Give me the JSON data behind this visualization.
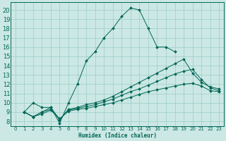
{
  "xlabel": "Humidex (Indice chaleur)",
  "bg_color": "#cce8e4",
  "grid_color": "#99ccc6",
  "line_color": "#006655",
  "xlim": [
    -0.5,
    23.5
  ],
  "ylim": [
    7.5,
    20.8
  ],
  "xticks": [
    0,
    1,
    2,
    3,
    4,
    5,
    6,
    7,
    8,
    9,
    10,
    11,
    12,
    13,
    14,
    15,
    16,
    17,
    18,
    19,
    20,
    21,
    22,
    23
  ],
  "yticks": [
    8,
    9,
    10,
    11,
    12,
    13,
    14,
    15,
    16,
    17,
    18,
    19,
    20
  ],
  "lines": [
    {
      "x": [
        1,
        2,
        3,
        4,
        5,
        6,
        7,
        8,
        9,
        10,
        11,
        12,
        13,
        14,
        15,
        16,
        17,
        18
      ],
      "y": [
        9,
        10,
        9.5,
        9.5,
        7.8,
        10,
        12,
        14.5,
        15.5,
        17,
        18,
        19.3,
        20.2,
        20.0,
        18.0,
        16.0,
        16.0,
        15.5
      ]
    },
    {
      "x": [
        1,
        2,
        3,
        4,
        5,
        6,
        7,
        8,
        9,
        10,
        11,
        12,
        13,
        14,
        15,
        16,
        17,
        18,
        19,
        20,
        21,
        22,
        23
      ],
      "y": [
        9.0,
        8.5,
        9.0,
        9.5,
        8.2,
        9.3,
        9.5,
        9.8,
        10.0,
        10.3,
        10.7,
        11.2,
        11.7,
        12.2,
        12.7,
        13.2,
        13.7,
        14.2,
        14.7,
        13.2,
        12.2,
        11.7,
        11.5
      ]
    },
    {
      "x": [
        1,
        2,
        3,
        4,
        5,
        6,
        7,
        8,
        9,
        10,
        11,
        12,
        13,
        14,
        15,
        16,
        17,
        18,
        19,
        20,
        21,
        22,
        23
      ],
      "y": [
        9.0,
        8.5,
        9.0,
        9.3,
        8.2,
        9.2,
        9.4,
        9.6,
        9.8,
        10.1,
        10.4,
        10.8,
        11.2,
        11.5,
        11.9,
        12.3,
        12.7,
        13.1,
        13.4,
        13.6,
        12.5,
        11.6,
        11.3
      ]
    },
    {
      "x": [
        1,
        2,
        3,
        4,
        5,
        6,
        7,
        8,
        9,
        10,
        11,
        12,
        13,
        14,
        15,
        16,
        17,
        18,
        19,
        20,
        21,
        22,
        23
      ],
      "y": [
        9.0,
        8.5,
        8.8,
        9.2,
        8.3,
        9.1,
        9.3,
        9.4,
        9.6,
        9.8,
        10.0,
        10.3,
        10.6,
        10.9,
        11.2,
        11.4,
        11.6,
        11.8,
        12.0,
        12.1,
        11.8,
        11.3,
        11.2
      ]
    }
  ]
}
